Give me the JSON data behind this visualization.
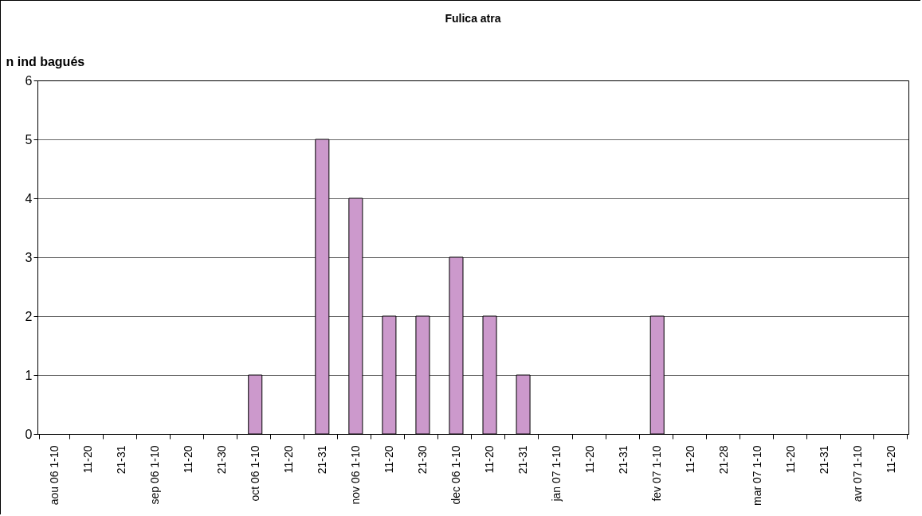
{
  "chart_data": {
    "type": "bar",
    "title": "Fulica atra",
    "ylabel": "n ind bagués",
    "categories": [
      "aou 06  1-10",
      "11-20",
      "21-31",
      "sep 06  1-10",
      "11-20",
      "21-30",
      "oct 06  1-10",
      "11-20",
      "21-31",
      "nov 06  1-10",
      "11-20",
      "21-30",
      "dec 06  1-10",
      "11-20",
      "21-31",
      "jan 07  1-10",
      "11-20",
      "21-31",
      "fev 07  1-10",
      "11-20",
      "21-28",
      "mar 07  1-10",
      "11-20",
      "21-31",
      "avr 07  1-10",
      "11-20"
    ],
    "values": [
      0,
      0,
      0,
      0,
      0,
      0,
      1,
      0,
      5,
      4,
      2,
      2,
      3,
      2,
      1,
      0,
      0,
      0,
      2,
      0,
      0,
      0,
      0,
      0,
      0,
      0
    ],
    "color": "#cc99cc",
    "ylim": [
      0,
      6
    ],
    "yticks": [
      0,
      1,
      2,
      3,
      4,
      5,
      6
    ],
    "grid": "y"
  }
}
